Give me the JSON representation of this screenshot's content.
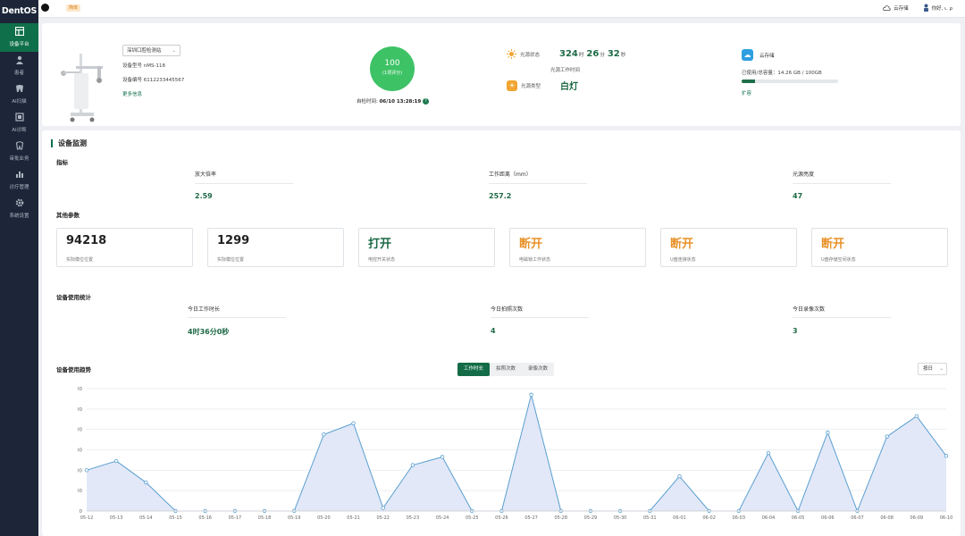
{
  "app": {
    "logo": "DentOS"
  },
  "sidebar": {
    "items": [
      {
        "label": "设备平台",
        "icon": "dashboard-icon",
        "active": true
      },
      {
        "label": "患者",
        "icon": "patient-icon"
      },
      {
        "label": "AI扫描",
        "icon": "tooth-icon"
      },
      {
        "label": "AI诊断",
        "icon": "scan-icon"
      },
      {
        "label": "审批业务",
        "icon": "tooth-icon"
      },
      {
        "label": "诊疗管理",
        "icon": "chart-icon"
      },
      {
        "label": "系统设置",
        "icon": "gear-icon"
      }
    ]
  },
  "topbar": {
    "tag": "简体",
    "cloud": "云存储",
    "user": "你好, ι. ρ"
  },
  "device": {
    "selector": "深圳口腔检测站",
    "model": "设备型号 nMS-118",
    "serial": "设备编号 6112233445567",
    "more": "更多信息",
    "score": "100",
    "score_label": "(1项评分)",
    "check_time_label": "自检时间:",
    "check_time": "06/10 13:28:19",
    "light_status_label": "光源状态",
    "light_h": "324",
    "light_h_unit": "时",
    "light_m": "26",
    "light_m_unit": "分",
    "light_s": "32",
    "light_s_unit": "秒",
    "light_sub": "光源工作时间",
    "light_type_label": "光源类型",
    "light_type": "白灯",
    "cloud_title": "云存储",
    "cloud_usage": "已使用/总容量：14.26 GB / 100GB",
    "cloud_used_fraction": 0.1426,
    "cloud_expand": "扩容"
  },
  "monitor": {
    "title": "设备监测",
    "indicators_title": "指标",
    "indicators": [
      {
        "label": "放大倍率",
        "value": "2.59"
      },
      {
        "label": "工作距离（mm）",
        "value": "257.2"
      },
      {
        "label": "光源亮度",
        "value": "47"
      }
    ],
    "params_title": "其他参数",
    "params": [
      {
        "value": "94218",
        "label": "实际模位位置",
        "style": "dark"
      },
      {
        "value": "1299",
        "label": "实际模位位置",
        "style": "dark"
      },
      {
        "value": "打开",
        "label": "电控开关状态",
        "style": "green"
      },
      {
        "value": "断开",
        "label": "电磁锁工作状态",
        "style": "orange"
      },
      {
        "value": "断开",
        "label": "U盘连接状态",
        "style": "orange"
      },
      {
        "value": "断开",
        "label": "U盘存储空间状态",
        "style": "orange"
      }
    ],
    "usage_title": "设备使用统计",
    "usage": [
      {
        "label": "今日工作时长",
        "value": "4时36分0秒"
      },
      {
        "label": "今日拍照次数",
        "value": "4"
      },
      {
        "label": "今日录像次数",
        "value": "3"
      }
    ],
    "trend_title": "设备使用趋势",
    "tabs": [
      "工作时长",
      "拍照次数",
      "录像次数"
    ],
    "range": "按日"
  },
  "chart_data": {
    "type": "area",
    "x": [
      "05-12",
      "05-13",
      "05-14",
      "05-15",
      "05-16",
      "05-17",
      "05-18",
      "05-19",
      "05-20",
      "05-21",
      "05-22",
      "05-23",
      "05-24",
      "05-25",
      "05-26",
      "05-27",
      "05-28",
      "05-29",
      "05-30",
      "05-31",
      "06-01",
      "06-02",
      "06-03",
      "06-04",
      "06-05",
      "06-06",
      "06-07",
      "06-08",
      "06-09",
      "06-10"
    ],
    "values": [
      200,
      245,
      140,
      0,
      0,
      0,
      0,
      0,
      375,
      430,
      15,
      225,
      265,
      0,
      0,
      570,
      0,
      0,
      0,
      0,
      170,
      0,
      0,
      285,
      0,
      385,
      0,
      365,
      465,
      270
    ],
    "ylim": [
      0,
      600
    ],
    "yticks": [
      0,
      100,
      200,
      300,
      400,
      500,
      600
    ],
    "grid": true,
    "line_color": "#5a9fd0",
    "fill_color": "#dfe5f7"
  }
}
